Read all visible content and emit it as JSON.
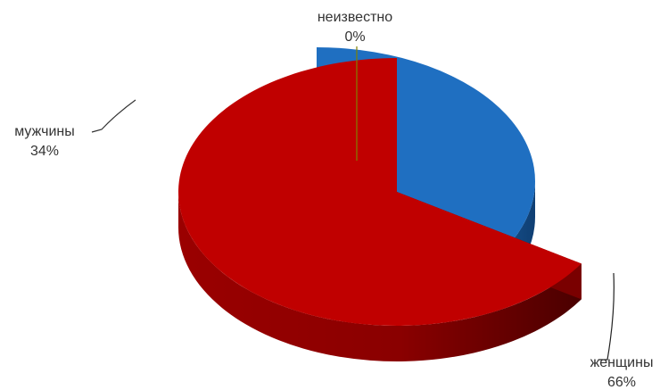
{
  "chart_data": {
    "type": "pie",
    "title": "",
    "categories": [
      "неизвестно",
      "мужчины",
      "женщины"
    ],
    "values": [
      0,
      34,
      66
    ],
    "labels": [
      {
        "name": "неизвестно",
        "percent": "0%"
      },
      {
        "name": "мужчины",
        "percent": "34%"
      },
      {
        "name": "женщины",
        "percent": "66%"
      }
    ],
    "colors": {
      "неизвестно": "#808000",
      "мужчины": "#1f6fc1",
      "женщины": "#c00000"
    },
    "style": "3d-exploded",
    "legend": "none"
  }
}
